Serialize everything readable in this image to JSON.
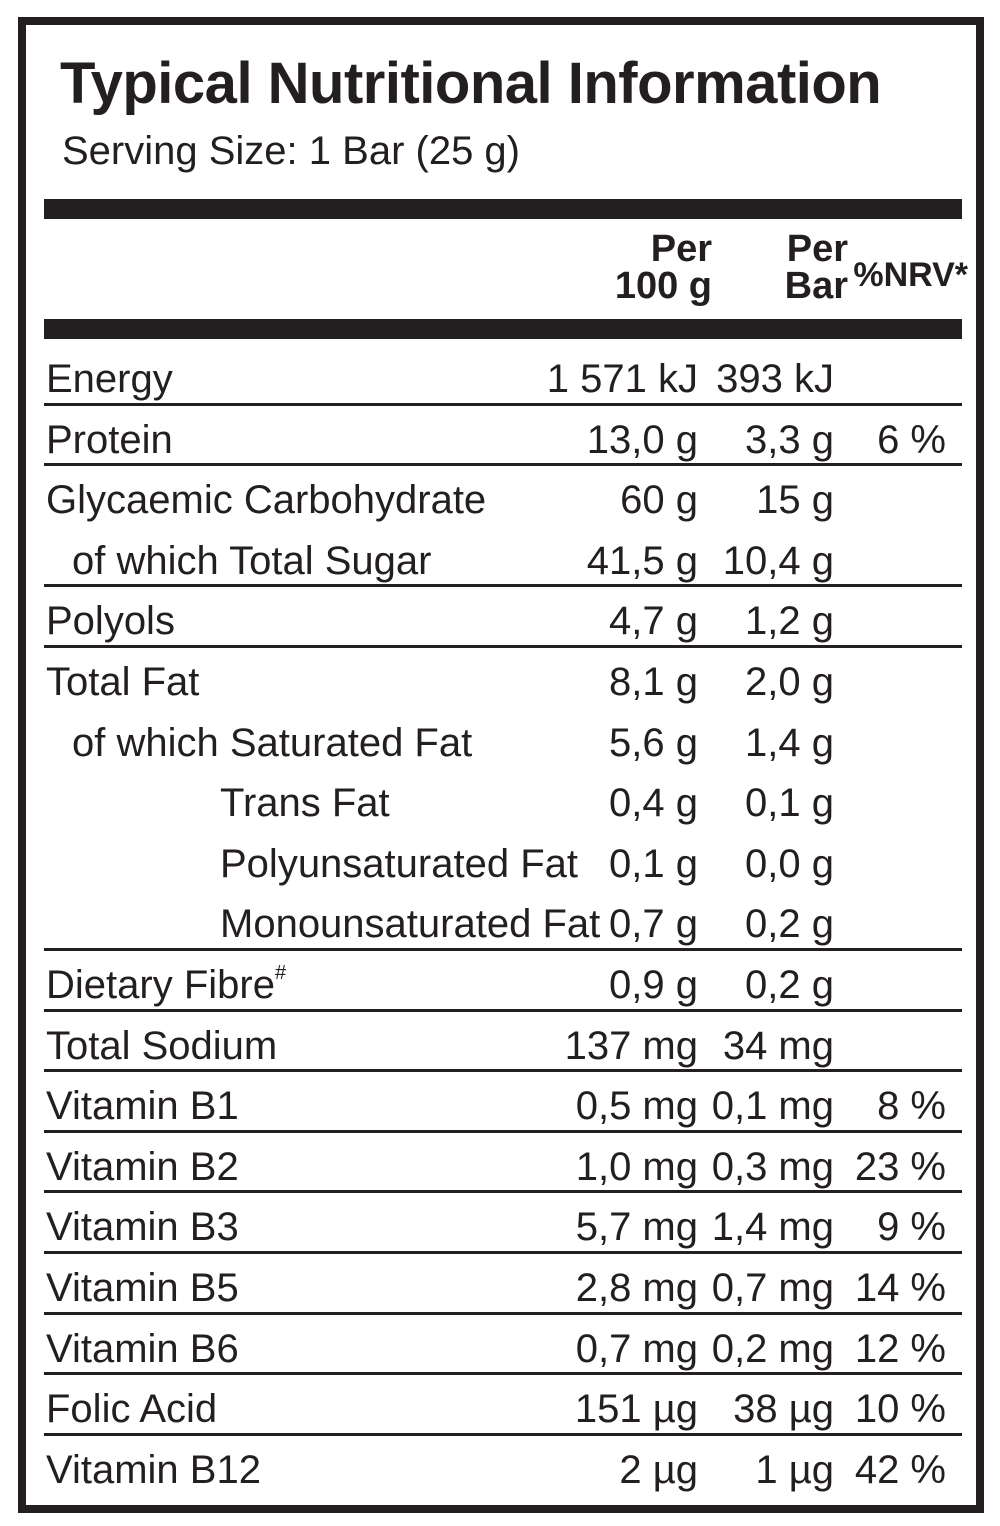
{
  "label": {
    "title": "Typical Nutritional Information",
    "serving": "Serving Size: 1 Bar (25 g)",
    "headers": {
      "per100_line1": "Per",
      "per100_line2": "100 g",
      "perbar_line1": "Per",
      "perbar_line2": "Bar",
      "nrv": "%NRV*"
    },
    "rows": [
      {
        "label": "Energy",
        "per100": "1 571 kJ",
        "perbar": "393 kJ",
        "nrv": "",
        "indent": 0,
        "divider": true
      },
      {
        "label": "Protein",
        "per100": "13,0 g",
        "perbar": "3,3 g",
        "nrv": "6 %",
        "indent": 0,
        "divider": true
      },
      {
        "label": "Glycaemic Carbohydrate",
        "per100": "60 g",
        "perbar": "15 g",
        "nrv": "",
        "indent": 0,
        "divider": false
      },
      {
        "label": "of which Total Sugar",
        "per100": "41,5 g",
        "perbar": "10,4 g",
        "nrv": "",
        "indent": 1,
        "divider": true
      },
      {
        "label": "Polyols",
        "per100": "4,7 g",
        "perbar": "1,2 g",
        "nrv": "",
        "indent": 0,
        "divider": true
      },
      {
        "label": "Total Fat",
        "per100": "8,1 g",
        "perbar": "2,0 g",
        "nrv": "",
        "indent": 0,
        "divider": false
      },
      {
        "label": "of which Saturated Fat",
        "per100": "5,6 g",
        "perbar": "1,4 g",
        "nrv": "",
        "indent": 1,
        "divider": false
      },
      {
        "label": "Trans Fat",
        "per100": "0,4 g",
        "perbar": "0,1 g",
        "nrv": "",
        "indent": 2,
        "divider": false
      },
      {
        "label": "Polyunsaturated Fat",
        "per100": "0,1 g",
        "perbar": "0,0 g",
        "nrv": "",
        "indent": 2,
        "divider": false
      },
      {
        "label": "Monounsaturated Fat",
        "per100": "0,7 g",
        "perbar": "0,2 g",
        "nrv": "",
        "indent": 2,
        "divider": true
      },
      {
        "label": "Dietary Fibre",
        "mark": "#",
        "per100": "0,9 g",
        "perbar": "0,2 g",
        "nrv": "",
        "indent": 0,
        "divider": true
      },
      {
        "label": "Total Sodium",
        "per100": "137 mg",
        "perbar": "34 mg",
        "nrv": "",
        "indent": 0,
        "divider": true
      },
      {
        "label": "Vitamin B1",
        "per100": "0,5 mg",
        "perbar": "0,1 mg",
        "nrv": "8 %",
        "indent": 0,
        "divider": true
      },
      {
        "label": "Vitamin B2",
        "per100": "1,0 mg",
        "perbar": "0,3 mg",
        "nrv": "23 %",
        "indent": 0,
        "divider": true
      },
      {
        "label": "Vitamin B3",
        "per100": "5,7 mg",
        "perbar": "1,4 mg",
        "nrv": "9 %",
        "indent": 0,
        "divider": true
      },
      {
        "label": "Vitamin B5",
        "per100": "2,8 mg",
        "perbar": "0,7 mg",
        "nrv": "14 %",
        "indent": 0,
        "divider": true
      },
      {
        "label": "Vitamin B6",
        "per100": "0,7 mg",
        "perbar": "0,2 mg",
        "nrv": "12 %",
        "indent": 0,
        "divider": true
      },
      {
        "label": "Folic Acid",
        "per100": "151 µg",
        "perbar": "38 µg",
        "nrv": "10 %",
        "indent": 0,
        "divider": true
      },
      {
        "label": "Vitamin B12",
        "per100": "2 µg",
        "perbar": "1 µg",
        "nrv": "42 %",
        "indent": 0,
        "divider": false
      }
    ]
  },
  "colors": {
    "ink": "#231f20",
    "background": "#ffffff"
  }
}
